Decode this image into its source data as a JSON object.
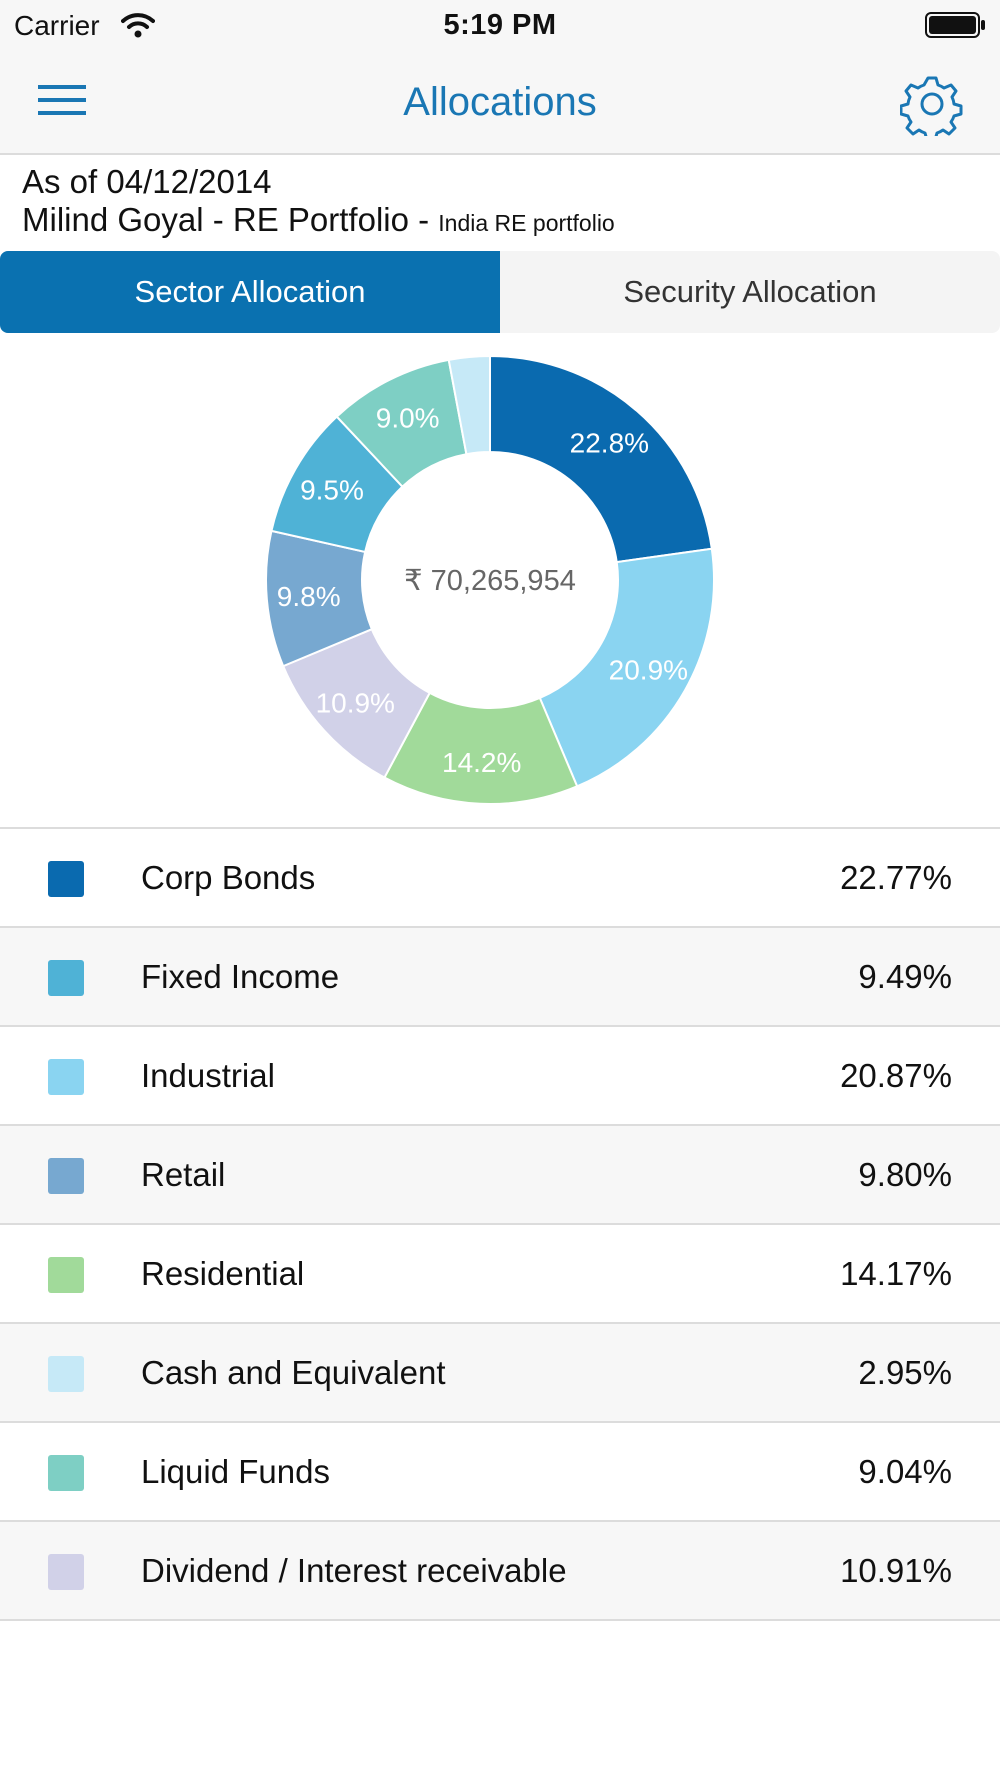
{
  "status_bar": {
    "carrier": "Carrier",
    "time": "5:19 PM"
  },
  "nav": {
    "title": "Allocations"
  },
  "info": {
    "as_of": "As of 04/12/2014",
    "portfolio_name": "Milind Goyal - RE Portfolio -",
    "portfolio_sub": "India RE portfolio"
  },
  "tabs": [
    {
      "label": "Sector Allocation",
      "active": true
    },
    {
      "label": "Security Allocation",
      "active": false
    }
  ],
  "chart_data": {
    "type": "pie",
    "donut": true,
    "center_label": "₹ 70,265,954",
    "categories": [
      "Corp Bonds",
      "Industrial",
      "Residential",
      "Dividend / Interest receivable",
      "Retail",
      "Fixed Income",
      "Liquid Funds",
      "Cash and Equivalent"
    ],
    "values": [
      22.77,
      20.87,
      14.17,
      10.91,
      9.8,
      9.49,
      9.04,
      2.95
    ],
    "slice_labels": [
      "22.8%",
      "20.9%",
      "14.2%",
      "10.9%",
      "9.8%",
      "9.5%",
      "9.0%",
      ""
    ],
    "colors": [
      "#0a6aaf",
      "#8ad4f1",
      "#a1da9a",
      "#d1d1e8",
      "#77a8d0",
      "#4fb2d6",
      "#7ecfc4",
      "#c6e9f7"
    ]
  },
  "legend": [
    {
      "label": "Corp Bonds",
      "value": "22.77%",
      "color": "#0a6aaf"
    },
    {
      "label": "Fixed Income",
      "value": "9.49%",
      "color": "#4fb2d6"
    },
    {
      "label": "Industrial",
      "value": "20.87%",
      "color": "#8ad4f1"
    },
    {
      "label": "Retail",
      "value": "9.80%",
      "color": "#77a8d0"
    },
    {
      "label": "Residential",
      "value": "14.17%",
      "color": "#a1da9a"
    },
    {
      "label": "Cash and Equivalent",
      "value": "2.95%",
      "color": "#c6e9f7"
    },
    {
      "label": "Liquid Funds",
      "value": "9.04%",
      "color": "#7ecfc4"
    },
    {
      "label": "Dividend / Interest receivable",
      "value": "10.91%",
      "color": "#d1d1e8"
    }
  ],
  "icons": {
    "menu": "hamburger-menu-icon",
    "settings": "gear-icon",
    "wifi": "wifi-icon",
    "battery": "battery-icon"
  },
  "accent_color": "#1a77b4"
}
